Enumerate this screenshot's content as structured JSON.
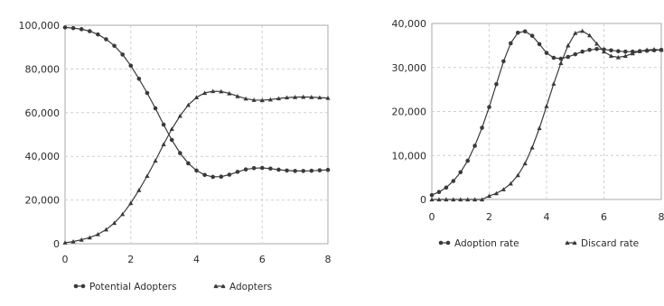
{
  "colors": {
    "background": "#ffffff",
    "plot_background": "#ffffff",
    "frame": "#a8a8a8",
    "grid": "#cfcfcf",
    "series_line": "#3a3a3a",
    "series_marker": "#3a3a3a"
  },
  "chart_data": [
    {
      "type": "line",
      "x_ticks": [
        0,
        2,
        4,
        6,
        8
      ],
      "x_tick_labels": [
        "0",
        "2",
        "4",
        "6",
        "8"
      ],
      "y_ticks": [
        0,
        20000,
        40000,
        60000,
        80000,
        100000
      ],
      "y_tick_labels": [
        "0",
        "20,000",
        "40,000",
        "60,000",
        "80,000",
        "100,000"
      ],
      "xlim": [
        0,
        8
      ],
      "ylim": [
        0,
        100000
      ],
      "grid": true,
      "legend_placement": "bottom",
      "series": [
        {
          "name": "Potential Adopters",
          "marker": "dot",
          "x": [
            0,
            0.25,
            0.5,
            0.75,
            1,
            1.25,
            1.5,
            1.75,
            2,
            2.25,
            2.5,
            2.75,
            3,
            3.25,
            3.5,
            3.75,
            4,
            4.25,
            4.5,
            4.75,
            5,
            5.25,
            5.5,
            5.75,
            6,
            6.25,
            6.5,
            6.75,
            7,
            7.25,
            7.5,
            7.75,
            8
          ],
          "y": [
            99000,
            98700,
            98200,
            97300,
            95800,
            93600,
            90600,
            86600,
            81500,
            75500,
            69000,
            62000,
            54500,
            47500,
            41500,
            36800,
            33500,
            31500,
            30600,
            30700,
            31600,
            32900,
            34000,
            34600,
            34700,
            34400,
            33900,
            33500,
            33300,
            33300,
            33400,
            33600,
            33800
          ]
        },
        {
          "name": "Adopters",
          "marker": "triangle",
          "x": [
            0,
            0.25,
            0.5,
            0.75,
            1,
            1.25,
            1.5,
            1.75,
            2,
            2.25,
            2.5,
            2.75,
            3,
            3.25,
            3.5,
            3.75,
            4,
            4.25,
            4.5,
            4.75,
            5,
            5.25,
            5.5,
            5.75,
            6,
            6.25,
            6.5,
            6.75,
            7,
            7.25,
            7.5,
            7.75,
            8
          ],
          "y": [
            500,
            1000,
            1800,
            2800,
            4300,
            6500,
            9500,
            13500,
            18600,
            24500,
            31000,
            38000,
            45500,
            52500,
            58500,
            63500,
            67000,
            69000,
            69800,
            69700,
            68800,
            67500,
            66400,
            65800,
            65700,
            66000,
            66500,
            66900,
            67100,
            67200,
            67100,
            66900,
            66700
          ]
        }
      ]
    },
    {
      "type": "line",
      "x_ticks": [
        0,
        2,
        4,
        6,
        8
      ],
      "x_tick_labels": [
        "0",
        "2",
        "4",
        "6",
        "8"
      ],
      "y_ticks": [
        0,
        10000,
        20000,
        30000,
        40000
      ],
      "y_tick_labels": [
        "0",
        "10,000",
        "20,000",
        "30,000",
        "40,000"
      ],
      "xlim": [
        0,
        8
      ],
      "ylim": [
        0,
        40000
      ],
      "grid": true,
      "legend_placement": "bottom",
      "series": [
        {
          "name": "Adoption rate",
          "marker": "dot",
          "x": [
            0,
            0.25,
            0.5,
            0.75,
            1,
            1.25,
            1.5,
            1.75,
            2,
            2.25,
            2.5,
            2.75,
            3,
            3.25,
            3.5,
            3.75,
            4,
            4.25,
            4.5,
            4.75,
            5,
            5.25,
            5.5,
            5.75,
            6,
            6.25,
            6.5,
            6.75,
            7,
            7.25,
            7.5,
            7.75,
            8
          ],
          "y": [
            1000,
            1700,
            2700,
            4200,
            6200,
            8800,
            12200,
            16300,
            21000,
            26200,
            31400,
            35500,
            37900,
            38200,
            37200,
            35300,
            33300,
            32200,
            32000,
            32400,
            33000,
            33600,
            34000,
            34200,
            34100,
            33900,
            33700,
            33600,
            33600,
            33700,
            33800,
            33900,
            34000
          ]
        },
        {
          "name": "Discard rate",
          "marker": "triangle",
          "x": [
            0,
            0.25,
            0.5,
            0.75,
            1,
            1.25,
            1.5,
            1.75,
            2,
            2.25,
            2.5,
            2.75,
            3,
            3.25,
            3.5,
            3.75,
            4,
            4.25,
            4.5,
            4.75,
            5,
            5.25,
            5.5,
            5.75,
            6,
            6.25,
            6.5,
            6.75,
            7,
            7.25,
            7.5,
            7.75,
            8
          ],
          "y": [
            0,
            0,
            0,
            0,
            0,
            0,
            0,
            0,
            800,
            1400,
            2300,
            3600,
            5500,
            8200,
            11800,
            16200,
            21200,
            26300,
            31000,
            35000,
            37800,
            38300,
            37300,
            35400,
            33600,
            32600,
            32300,
            32600,
            33200,
            33700,
            34000,
            34100,
            34000
          ]
        }
      ]
    }
  ]
}
